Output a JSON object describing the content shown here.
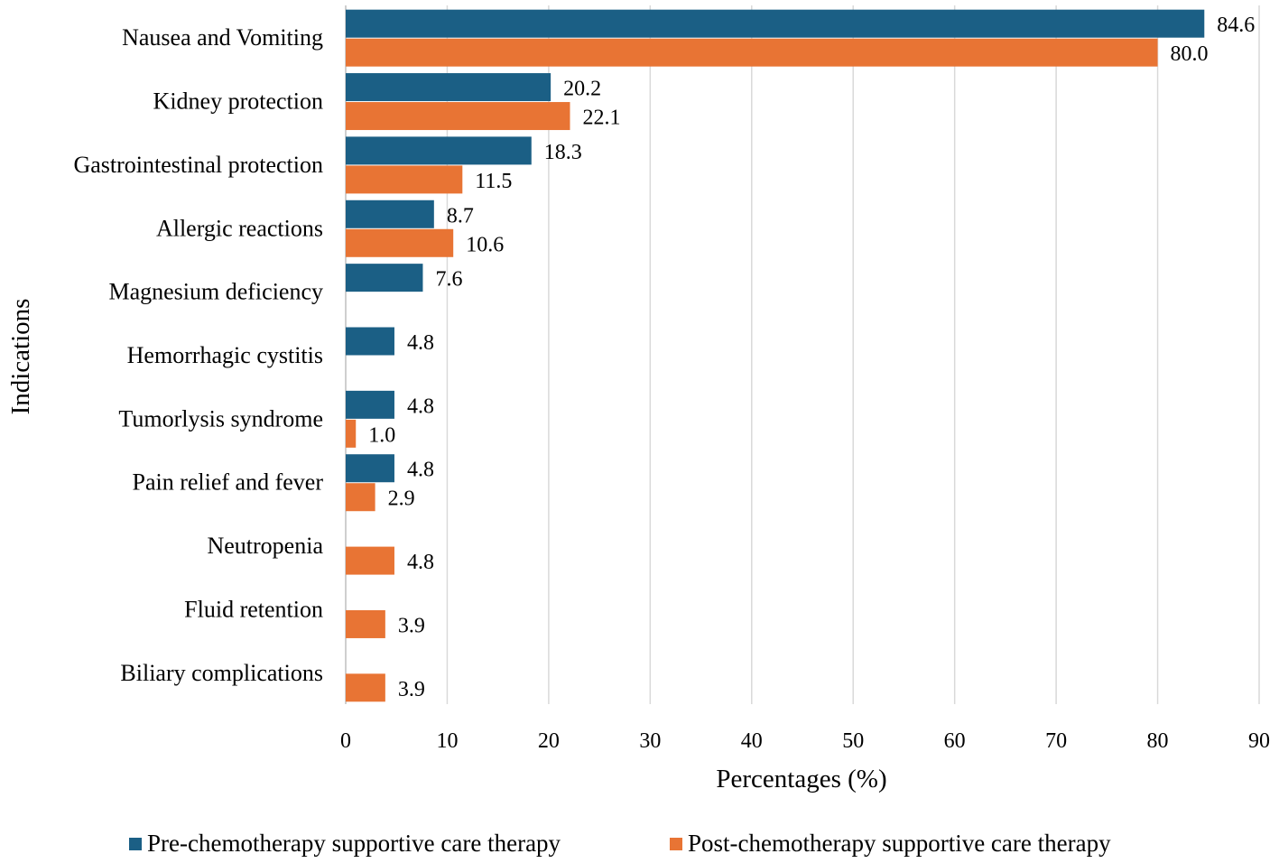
{
  "chart_data": {
    "type": "bar",
    "orientation": "horizontal",
    "title": "",
    "xlabel": "Percentages  (%)",
    "ylabel": "Indications",
    "xlim": [
      0,
      90
    ],
    "xticks": [
      0,
      10,
      20,
      30,
      40,
      50,
      60,
      70,
      80,
      90
    ],
    "grid": "vertical",
    "legend_position": "bottom",
    "categories": [
      "Nausea and Vomiting",
      "Kidney protection",
      "Gastrointestinal protection",
      "Allergic reactions",
      "Magnesium deficiency",
      "Hemorrhagic cystitis",
      "Tumorlysis syndrome",
      "Pain relief and fever",
      "Neutropenia",
      "Fluid retention",
      "Biliary complications"
    ],
    "series": [
      {
        "name": "Pre-chemotherapy supportive care therapy",
        "color": "#1b5f85",
        "values": [
          84.6,
          20.2,
          18.3,
          8.7,
          7.6,
          4.8,
          4.8,
          4.8,
          null,
          null,
          null
        ],
        "labels": [
          "84.6",
          "20.2",
          "18.3",
          "8.7",
          "7.6",
          "4.8",
          "4.8",
          "4.8",
          null,
          null,
          null
        ]
      },
      {
        "name": "Post-chemotherapy supportive care therapy",
        "color": "#e87434",
        "values": [
          80.0,
          22.1,
          11.5,
          10.6,
          null,
          null,
          1.0,
          2.9,
          4.8,
          3.9,
          3.9
        ],
        "labels": [
          "80.0",
          "22.1",
          "11.5",
          "10.6",
          null,
          null,
          "1.0",
          "2.9",
          "4.8",
          "3.9",
          "3.9"
        ]
      }
    ]
  }
}
